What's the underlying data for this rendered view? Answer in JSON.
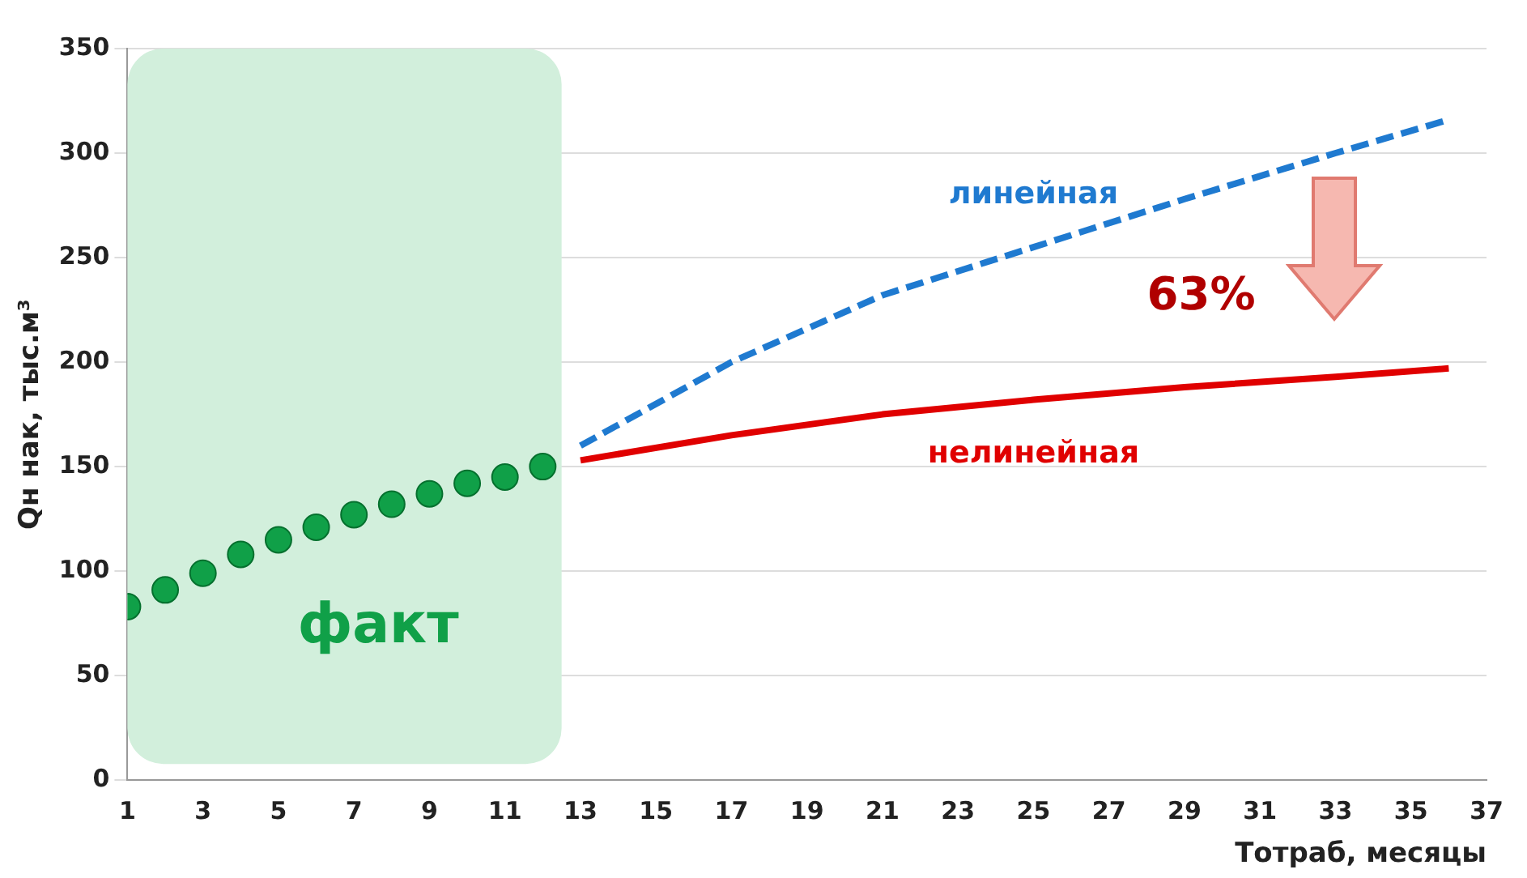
{
  "chart_data": {
    "type": "line",
    "xlabel": "Тотраб, месяцы",
    "ylabel": "Qн нак, тыс.м³",
    "xlim": [
      1,
      37
    ],
    "xticks": [
      1,
      3,
      5,
      7,
      9,
      11,
      13,
      15,
      17,
      19,
      21,
      23,
      25,
      27,
      29,
      31,
      33,
      35,
      37
    ],
    "ylim": [
      0,
      350
    ],
    "yticks": [
      0,
      50,
      100,
      150,
      200,
      250,
      300,
      350
    ],
    "grid": "y",
    "legend": false,
    "series": [
      {
        "name": "факт",
        "type": "scatter",
        "marker": "circle",
        "color": "#10a048",
        "x": [
          1,
          2,
          3,
          4,
          5,
          6,
          7,
          8,
          9,
          10,
          11,
          12
        ],
        "values": [
          83,
          91,
          99,
          108,
          115,
          121,
          127,
          132,
          137,
          142,
          145,
          150
        ]
      },
      {
        "name": "линейная",
        "line_style": "dashed",
        "color": "#1f7ad0",
        "x": [
          13,
          17,
          21,
          25,
          29,
          33,
          36
        ],
        "values": [
          160,
          200,
          232,
          255,
          278,
          300,
          316
        ]
      },
      {
        "name": "нелинейная",
        "line_style": "solid",
        "color": "#e00000",
        "x": [
          13,
          17,
          21,
          25,
          29,
          33,
          36
        ],
        "values": [
          153,
          165,
          175,
          182,
          188,
          193,
          197
        ]
      }
    ],
    "bands": [
      {
        "axis": "x",
        "from": 1,
        "to": 12.5,
        "color": "#d2efdc"
      }
    ],
    "annotations": [
      "63%"
    ]
  }
}
